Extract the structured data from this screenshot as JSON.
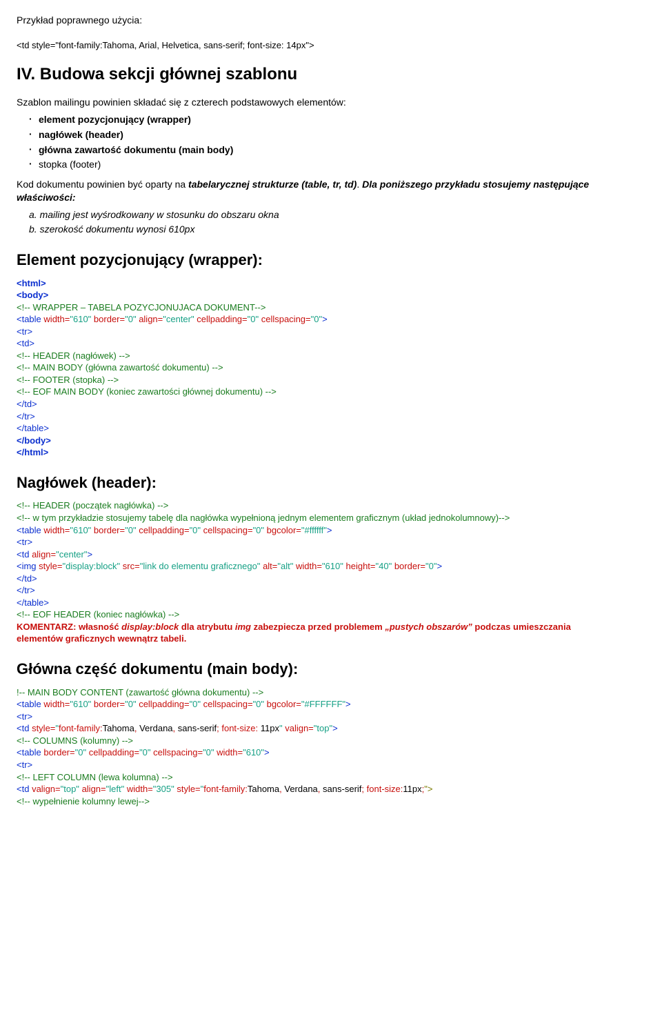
{
  "intro": {
    "line1": "Przykład poprawnego użycia:",
    "codeline": "<td style=\"font-family:Tahoma, Arial, Helvetica, sans-serif; font-size: 14px\">"
  },
  "section4": {
    "title": "IV. Budowa sekcji głównej szablonu",
    "para": "Szablon mailingu powinien składać się z czterech podstawowych elementów:",
    "bullets": [
      "element pozycjonujący (wrapper)",
      "nagłówek (header)",
      "główna zawartość dokumentu (main body)",
      "stopka (footer)"
    ],
    "p2_pre": "Kod dokumentu powinien być oparty na ",
    "p2_bold": "tabelarycznej strukturze (table, tr, td)",
    "p2_post": ". ",
    "p2_ital": "Dla poniższego przykładu stosujemy następujące właściwości:",
    "sub": {
      "a": "a. mailing jest wyśrodkowany w stosunku do obszaru okna",
      "b": "b. szerokość dokumentu wynosi 610px"
    }
  },
  "wrapper": {
    "title": "Element pozycjonujący (wrapper):",
    "code": {
      "l1": "<html>",
      "l2": "<body>",
      "l3": "<!-- WRAPPER – TABELA POZYCJONUJACA DOKUMENT-->",
      "l4": "<table width=\"610\" border=\"0\" align=\"center\" cellpadding=\"0\" cellspacing=\"0\">",
      "l5": "<tr>",
      "l6": "<td>",
      "l7": "<!-- HEADER (nagłówek) -->",
      "l8": "<!-- MAIN BODY (główna zawartość dokumentu) -->",
      "l9": "<!-- FOOTER (stopka) -->",
      "l10": "<!-- EOF MAIN BODY (koniec zawartości głównej dokumentu) -->",
      "l11": "</td>",
      "l12": "</tr>",
      "l13": "</table>",
      "l14": "</body>",
      "l15": "</html>"
    }
  },
  "header": {
    "title": "Nagłówek (header):",
    "code": {
      "l1": "<!-- HEADER (początek nagłówka) -->",
      "l2": "<!-- w tym przykładzie stosujemy tabelę dla nagłówka wypełnioną jednym elementem graficznym (układ jednokolumnowy)-->",
      "l3": "<table width=\"610\" border=\"0\" cellpadding=\"0\" cellspacing=\"0\" bgcolor=\"#ffffff\">",
      "l4": "<tr>",
      "l5": "<td align=\"center\">",
      "l6": "<img style=\"display:block\" src=\"link do elementu graficznego\" alt=\"alt\" width=\"610\" height=\"40\" border=\"0\">",
      "l7": "</td>",
      "l8": "</tr>",
      "l9": "</table>",
      "l10": "<!-- EOF HEADER (koniec nagłówka) -->"
    },
    "comment": {
      "l1a": "KOMENTARZ: własność ",
      "l1b": "display:block",
      "l1c": " dla atrybutu ",
      "l1d": "img",
      "l1e": " zabezpiecza przed problemem ",
      "l1f": "„pustych obszarów”",
      "l1g": " podczas umieszczania",
      "l2": "elementów graficznych wewnątrz tabeli."
    }
  },
  "mainbody": {
    "title": "Główna część dokumentu (main body):",
    "code": {
      "l1": "!-- MAIN BODY CONTENT (zawartość główna dokumentu) -->",
      "l2": "<table width=\"610\" border=\"0\" cellpadding=\"0\" cellspacing=\"0\" bgcolor=\"#FFFFFF\">",
      "l3": "<tr>",
      "l4": "<td style=\"font-family:Tahoma, Verdana, sans-serif; font-size: 11px\" valign=\"top\">",
      "l5": "<!-- COLUMNS (kolumny) -->",
      "l6": "<table border=\"0\" cellpadding=\"0\" cellspacing=\"0\" width=\"610\">",
      "l7": "<tr>",
      "l8": "<!-- LEFT COLUMN (lewa kolumna) -->",
      "l9a": "<td valign=\"top\" align=\"left\" width=\"305\" style=\"font-family:Tahoma, Verdana, sans-serif; font-size:11px;",
      "l9b": "\">",
      "l10": "<!-- wypełnienie kolumny lewej-->"
    }
  },
  "colors": {
    "blue": "#0b2fcf",
    "red": "#c70f0c",
    "green": "#1a7c1f",
    "cyan": "#16a085",
    "black": "#000000"
  }
}
